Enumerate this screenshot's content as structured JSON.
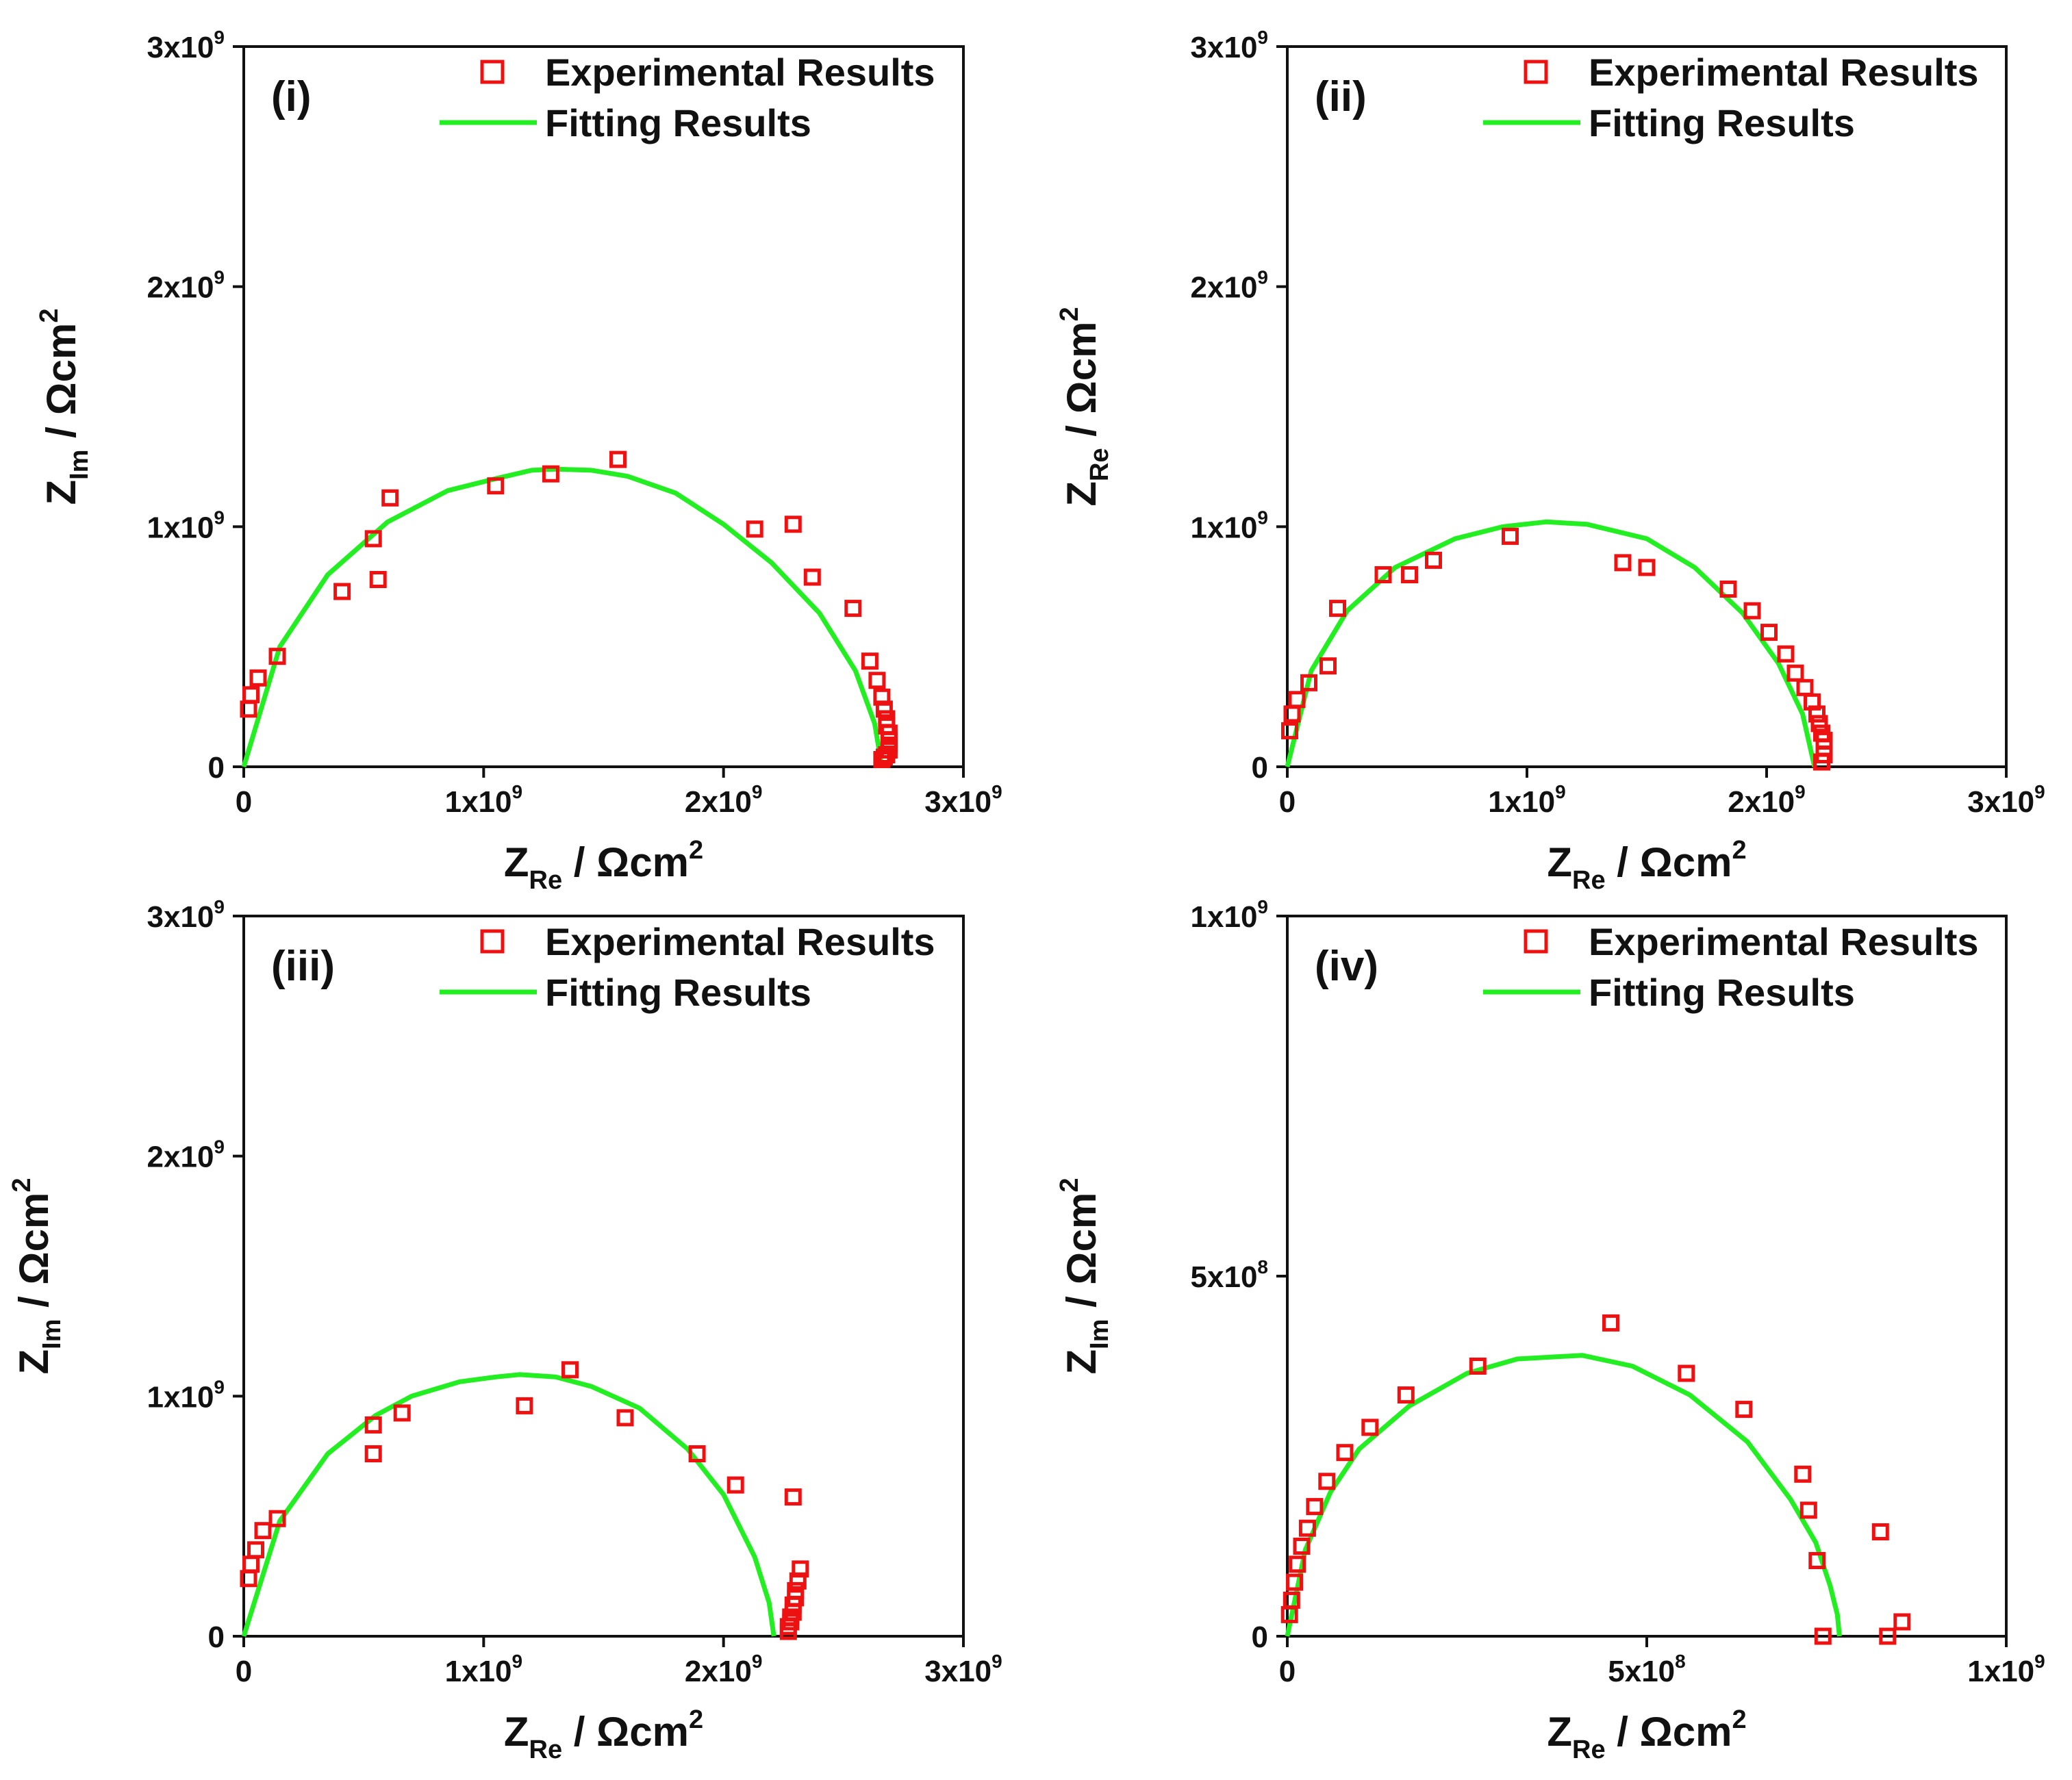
{
  "colors": {
    "experimental": "#ee1111",
    "fit": "#22ee22",
    "axis": "#111111"
  },
  "chart_data": [
    {
      "type": "scatter",
      "panel_label": "(i)",
      "legend": [
        "Experimental Results",
        "Fitting Results"
      ],
      "xlim": [
        0,
        3000000000
      ],
      "ylim": [
        0,
        3000000000
      ],
      "x_ticks": [
        {
          "value": 0,
          "mantissa": "0",
          "exp": ""
        },
        {
          "value": 1000000000,
          "mantissa": "1x10",
          "exp": "9"
        },
        {
          "value": 2000000000,
          "mantissa": "2x10",
          "exp": "9"
        },
        {
          "value": 3000000000,
          "mantissa": "3x10",
          "exp": "9"
        }
      ],
      "y_ticks": [
        {
          "value": 0,
          "mantissa": "0",
          "exp": ""
        },
        {
          "value": 1000000000,
          "mantissa": "1x10",
          "exp": "9"
        },
        {
          "value": 2000000000,
          "mantissa": "2x10",
          "exp": "9"
        },
        {
          "value": 3000000000,
          "mantissa": "3x10",
          "exp": "9"
        }
      ],
      "xlabel": {
        "main": "Z",
        "sub": "Re",
        "unit": " / Ωcm",
        "sup": "2"
      },
      "ylabel": {
        "main": "Z",
        "sub": "Im",
        "unit": " / Ωcm",
        "sup": "2"
      },
      "series": [
        {
          "name": "Experimental Results",
          "x": [
            20000000,
            30000000,
            60000000,
            140000000,
            410000000,
            540000000,
            560000000,
            610000000,
            1050000000,
            1280000000,
            1560000000,
            2130000000,
            2290000000,
            2370000000,
            2540000000,
            2610000000,
            2640000000,
            2660000000,
            2670000000,
            2680000000,
            2680000000,
            2690000000,
            2690000000,
            2690000000,
            2690000000,
            2680000000,
            2670000000,
            2660000000
          ],
          "y": [
            240000000,
            300000000,
            370000000,
            460000000,
            730000000,
            950000000,
            780000000,
            1120000000,
            1170000000,
            1220000000,
            1280000000,
            990000000,
            1010000000,
            790000000,
            660000000,
            440000000,
            360000000,
            290000000,
            240000000,
            200000000,
            170000000,
            140000000,
            110000000,
            90000000,
            70000000,
            50000000,
            40000000,
            30000000
          ]
        },
        {
          "name": "Fitting Results",
          "x": [
            0,
            150000000,
            350000000,
            600000000,
            850000000,
            1050000000,
            1200000000,
            1300000000,
            1450000000,
            1600000000,
            1800000000,
            2000000000,
            2200000000,
            2400000000,
            2550000000,
            2630000000,
            2660000000
          ],
          "y": [
            0,
            500000000,
            800000000,
            1020000000,
            1150000000,
            1200000000,
            1235000000,
            1240000000,
            1235000000,
            1210000000,
            1140000000,
            1010000000,
            850000000,
            640000000,
            400000000,
            180000000,
            0
          ]
        }
      ]
    },
    {
      "type": "scatter",
      "panel_label": "(ii)",
      "legend": [
        "Experimental Results",
        "Fitting Results"
      ],
      "xlim": [
        0,
        3000000000
      ],
      "ylim": [
        0,
        3000000000
      ],
      "x_ticks": [
        {
          "value": 0,
          "mantissa": "0",
          "exp": ""
        },
        {
          "value": 1000000000,
          "mantissa": "1x10",
          "exp": "9"
        },
        {
          "value": 2000000000,
          "mantissa": "2x10",
          "exp": "9"
        },
        {
          "value": 3000000000,
          "mantissa": "3x10",
          "exp": "9"
        }
      ],
      "y_ticks": [
        {
          "value": 0,
          "mantissa": "0",
          "exp": ""
        },
        {
          "value": 1000000000,
          "mantissa": "1x10",
          "exp": "9"
        },
        {
          "value": 2000000000,
          "mantissa": "2x10",
          "exp": "9"
        },
        {
          "value": 3000000000,
          "mantissa": "3x10",
          "exp": "9"
        }
      ],
      "xlabel": {
        "main": "Z",
        "sub": "Re",
        "unit": " / Ωcm",
        "sup": "2"
      },
      "ylabel": {
        "main": "Z",
        "sub": "Re",
        "unit": " / Ωcm",
        "sup": "2"
      },
      "series": [
        {
          "name": "Experimental Results",
          "x": [
            10000000,
            20000000,
            40000000,
            90000000,
            170000000,
            210000000,
            400000000,
            510000000,
            610000000,
            930000000,
            1400000000,
            1500000000,
            1840000000,
            1940000000,
            2010000000,
            2080000000,
            2120000000,
            2160000000,
            2190000000,
            2210000000,
            2220000000,
            2230000000,
            2240000000,
            2240000000,
            2240000000,
            2230000000
          ],
          "y": [
            150000000,
            220000000,
            280000000,
            350000000,
            420000000,
            660000000,
            800000000,
            800000000,
            860000000,
            960000000,
            850000000,
            830000000,
            740000000,
            650000000,
            560000000,
            470000000,
            390000000,
            330000000,
            270000000,
            220000000,
            180000000,
            140000000,
            110000000,
            80000000,
            50000000,
            20000000
          ]
        },
        {
          "name": "Fitting Results",
          "x": [
            0,
            100000000,
            250000000,
            450000000,
            700000000,
            900000000,
            1080000000,
            1250000000,
            1500000000,
            1700000000,
            1900000000,
            2050000000,
            2150000000,
            2200000000
          ],
          "y": [
            0,
            400000000,
            650000000,
            830000000,
            950000000,
            1000000000,
            1020000000,
            1010000000,
            950000000,
            830000000,
            640000000,
            430000000,
            220000000,
            0
          ]
        }
      ]
    },
    {
      "type": "scatter",
      "panel_label": "(iii)",
      "legend": [
        "Experimental Results",
        "Fitting Results"
      ],
      "xlim": [
        0,
        3000000000
      ],
      "ylim": [
        0,
        3000000000
      ],
      "x_ticks": [
        {
          "value": 0,
          "mantissa": "0",
          "exp": ""
        },
        {
          "value": 1000000000,
          "mantissa": "1x10",
          "exp": "9"
        },
        {
          "value": 2000000000,
          "mantissa": "2x10",
          "exp": "9"
        },
        {
          "value": 3000000000,
          "mantissa": "3x10",
          "exp": "9"
        }
      ],
      "y_ticks": [
        {
          "value": 0,
          "mantissa": "0",
          "exp": ""
        },
        {
          "value": 1000000000,
          "mantissa": "1x10",
          "exp": "9"
        },
        {
          "value": 2000000000,
          "mantissa": "2x10",
          "exp": "9"
        },
        {
          "value": 3000000000,
          "mantissa": "3x10",
          "exp": "9"
        }
      ],
      "xlabel": {
        "main": "Z",
        "sub": "Re",
        "unit": " / Ωcm",
        "sup": "2"
      },
      "ylabel": {
        "main": "Z",
        "sub": "Im",
        "unit": " / Ωcm",
        "sup": "2"
      },
      "series": [
        {
          "name": "Experimental Results",
          "x": [
            20000000,
            30000000,
            50000000,
            80000000,
            140000000,
            540000000,
            540000000,
            660000000,
            1170000000,
            1360000000,
            1590000000,
            1890000000,
            2050000000,
            2290000000,
            2320000000,
            2310000000,
            2300000000,
            2300000000,
            2290000000,
            2290000000,
            2280000000,
            2280000000,
            2270000000,
            2270000000
          ],
          "y": [
            240000000,
            300000000,
            360000000,
            440000000,
            490000000,
            880000000,
            760000000,
            930000000,
            960000000,
            1110000000,
            910000000,
            760000000,
            630000000,
            580000000,
            280000000,
            230000000,
            190000000,
            160000000,
            130000000,
            100000000,
            80000000,
            60000000,
            40000000,
            20000000
          ]
        },
        {
          "name": "Fitting Results",
          "x": [
            0,
            150000000,
            350000000,
            550000000,
            700000000,
            900000000,
            1050000000,
            1150000000,
            1300000000,
            1450000000,
            1650000000,
            1850000000,
            2000000000,
            2130000000,
            2190000000,
            2210000000
          ],
          "y": [
            0,
            480000000,
            760000000,
            920000000,
            1000000000,
            1060000000,
            1080000000,
            1090000000,
            1080000000,
            1040000000,
            950000000,
            780000000,
            590000000,
            330000000,
            140000000,
            0
          ]
        }
      ]
    },
    {
      "type": "scatter",
      "panel_label": "(iv)",
      "legend": [
        "Experimental Results",
        "Fitting Results"
      ],
      "xlim": [
        0,
        1000000000
      ],
      "ylim": [
        0,
        1000000000
      ],
      "x_ticks": [
        {
          "value": 0,
          "mantissa": "0",
          "exp": ""
        },
        {
          "value": 500000000,
          "mantissa": "5x10",
          "exp": "8"
        },
        {
          "value": 1000000000,
          "mantissa": "1x10",
          "exp": "9"
        }
      ],
      "y_ticks": [
        {
          "value": 0,
          "mantissa": "0",
          "exp": ""
        },
        {
          "value": 500000000,
          "mantissa": "5x10",
          "exp": "8"
        },
        {
          "value": 1000000000,
          "mantissa": "1x10",
          "exp": "9"
        }
      ],
      "xlabel": {
        "main": "Z",
        "sub": "Re",
        "unit": " / Ωcm",
        "sup": "2"
      },
      "ylabel": {
        "main": "Z",
        "sub": "Im",
        "unit": " / Ωcm",
        "sup": "2"
      },
      "series": [
        {
          "name": "Experimental Results",
          "x": [
            3000000,
            6000000,
            10000000,
            14000000,
            20000000,
            28000000,
            38000000,
            55000000,
            80000000,
            115000000,
            165000000,
            265000000,
            450000000,
            555000000,
            635000000,
            717000000,
            725000000,
            737000000,
            745000000,
            825000000,
            835000000,
            855000000
          ],
          "y": [
            30000000,
            50000000,
            75000000,
            100000000,
            125000000,
            150000000,
            180000000,
            215000000,
            255000000,
            290000000,
            335000000,
            375000000,
            435000000,
            365000000,
            315000000,
            225000000,
            175000000,
            105000000,
            0,
            145000000,
            0,
            20000000
          ]
        },
        {
          "name": "Fitting Results",
          "x": [
            0,
            25000000,
            60000000,
            100000000,
            170000000,
            250000000,
            320000000,
            410000000,
            480000000,
            560000000,
            640000000,
            700000000,
            735000000,
            755000000,
            765000000,
            768000000
          ],
          "y": [
            0,
            120000000,
            200000000,
            260000000,
            320000000,
            365000000,
            385000000,
            390000000,
            375000000,
            335000000,
            270000000,
            190000000,
            130000000,
            70000000,
            30000000,
            0
          ]
        }
      ]
    }
  ]
}
